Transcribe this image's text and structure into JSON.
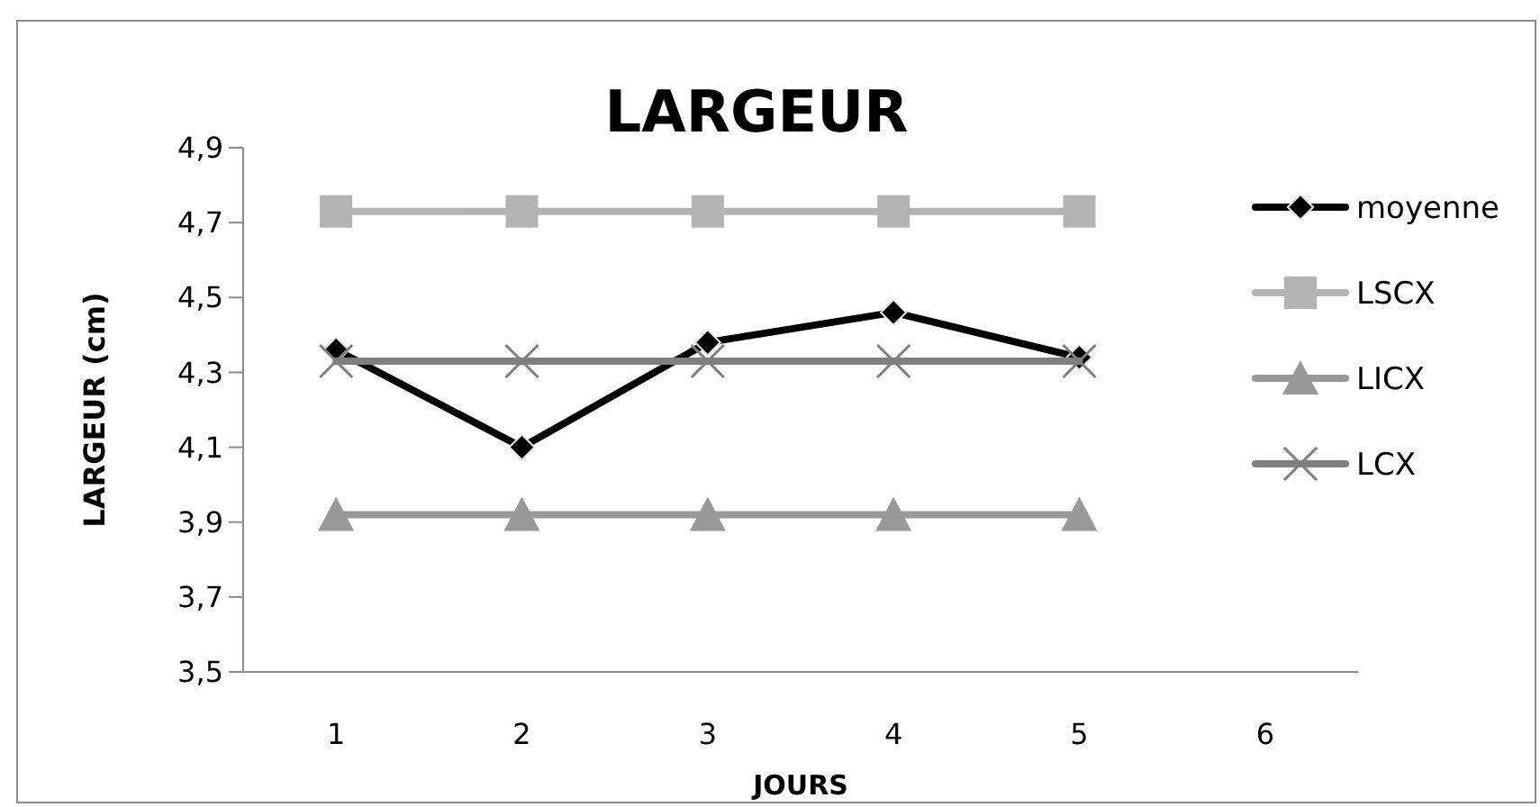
{
  "chart_data": {
    "type": "line",
    "title": "LARGEUR",
    "xlabel": "JOURS",
    "ylabel": "LARGEUR (cm)",
    "categories": [
      "1",
      "2",
      "3",
      "4",
      "5",
      "6"
    ],
    "series": [
      {
        "name": "moyenne",
        "color": "#000000",
        "marker": "diamond",
        "values": [
          4.36,
          4.1,
          4.38,
          4.46,
          4.34,
          null
        ]
      },
      {
        "name": "LSCX",
        "color": "#b3b3b3",
        "marker": "square",
        "values": [
          4.73,
          4.73,
          4.73,
          4.73,
          4.73,
          null
        ]
      },
      {
        "name": "LICX",
        "color": "#999999",
        "marker": "triangle",
        "values": [
          3.92,
          3.92,
          3.92,
          3.92,
          3.92,
          null
        ]
      },
      {
        "name": "LCX",
        "color": "#7f7f7f",
        "marker": "cross",
        "values": [
          4.33,
          4.33,
          4.33,
          4.33,
          4.33,
          null
        ]
      }
    ],
    "ylim": [
      3.5,
      4.9
    ],
    "yticks": [
      {
        "value": 3.5,
        "label": "3,5"
      },
      {
        "value": 3.7,
        "label": "3,7"
      },
      {
        "value": 3.9,
        "label": "3,9"
      },
      {
        "value": 4.1,
        "label": "4,1"
      },
      {
        "value": 4.3,
        "label": "4,3"
      },
      {
        "value": 4.5,
        "label": "4,5"
      },
      {
        "value": 4.7,
        "label": "4,7"
      },
      {
        "value": 4.9,
        "label": "4,9"
      }
    ],
    "grid": false,
    "legend": "right",
    "line_style": "solid"
  }
}
